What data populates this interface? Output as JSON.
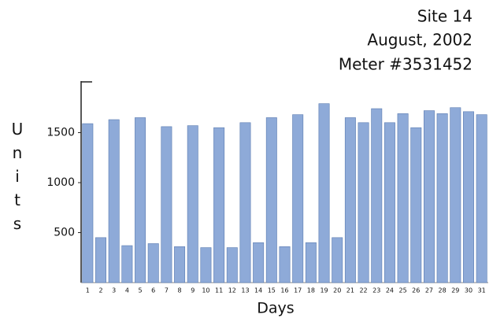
{
  "chart_data": {
    "type": "bar",
    "title": [
      "Site 14",
      "August, 2002",
      "Meter #3531452"
    ],
    "x_label": "Days",
    "y_label": "Units",
    "categories": [
      "1",
      "2",
      "3",
      "4",
      "5",
      "6",
      "7",
      "8",
      "9",
      "10",
      "11",
      "12",
      "13",
      "14",
      "15",
      "16",
      "17",
      "18",
      "19",
      "20",
      "21",
      "22",
      "23",
      "24",
      "25",
      "26",
      "27",
      "28",
      "29",
      "30",
      "31"
    ],
    "values": [
      1590,
      450,
      1630,
      370,
      1650,
      390,
      1560,
      360,
      1570,
      350,
      1550,
      350,
      1600,
      400,
      1650,
      360,
      1680,
      400,
      1790,
      450,
      1650,
      1600,
      1740,
      1600,
      1690,
      1550,
      1720,
      1690,
      1750,
      1710,
      1680
    ],
    "color": "#8eaad8",
    "ylim": [
      0,
      2000
    ],
    "yticks": [
      500,
      1000,
      1500
    ],
    "grid": false
  }
}
